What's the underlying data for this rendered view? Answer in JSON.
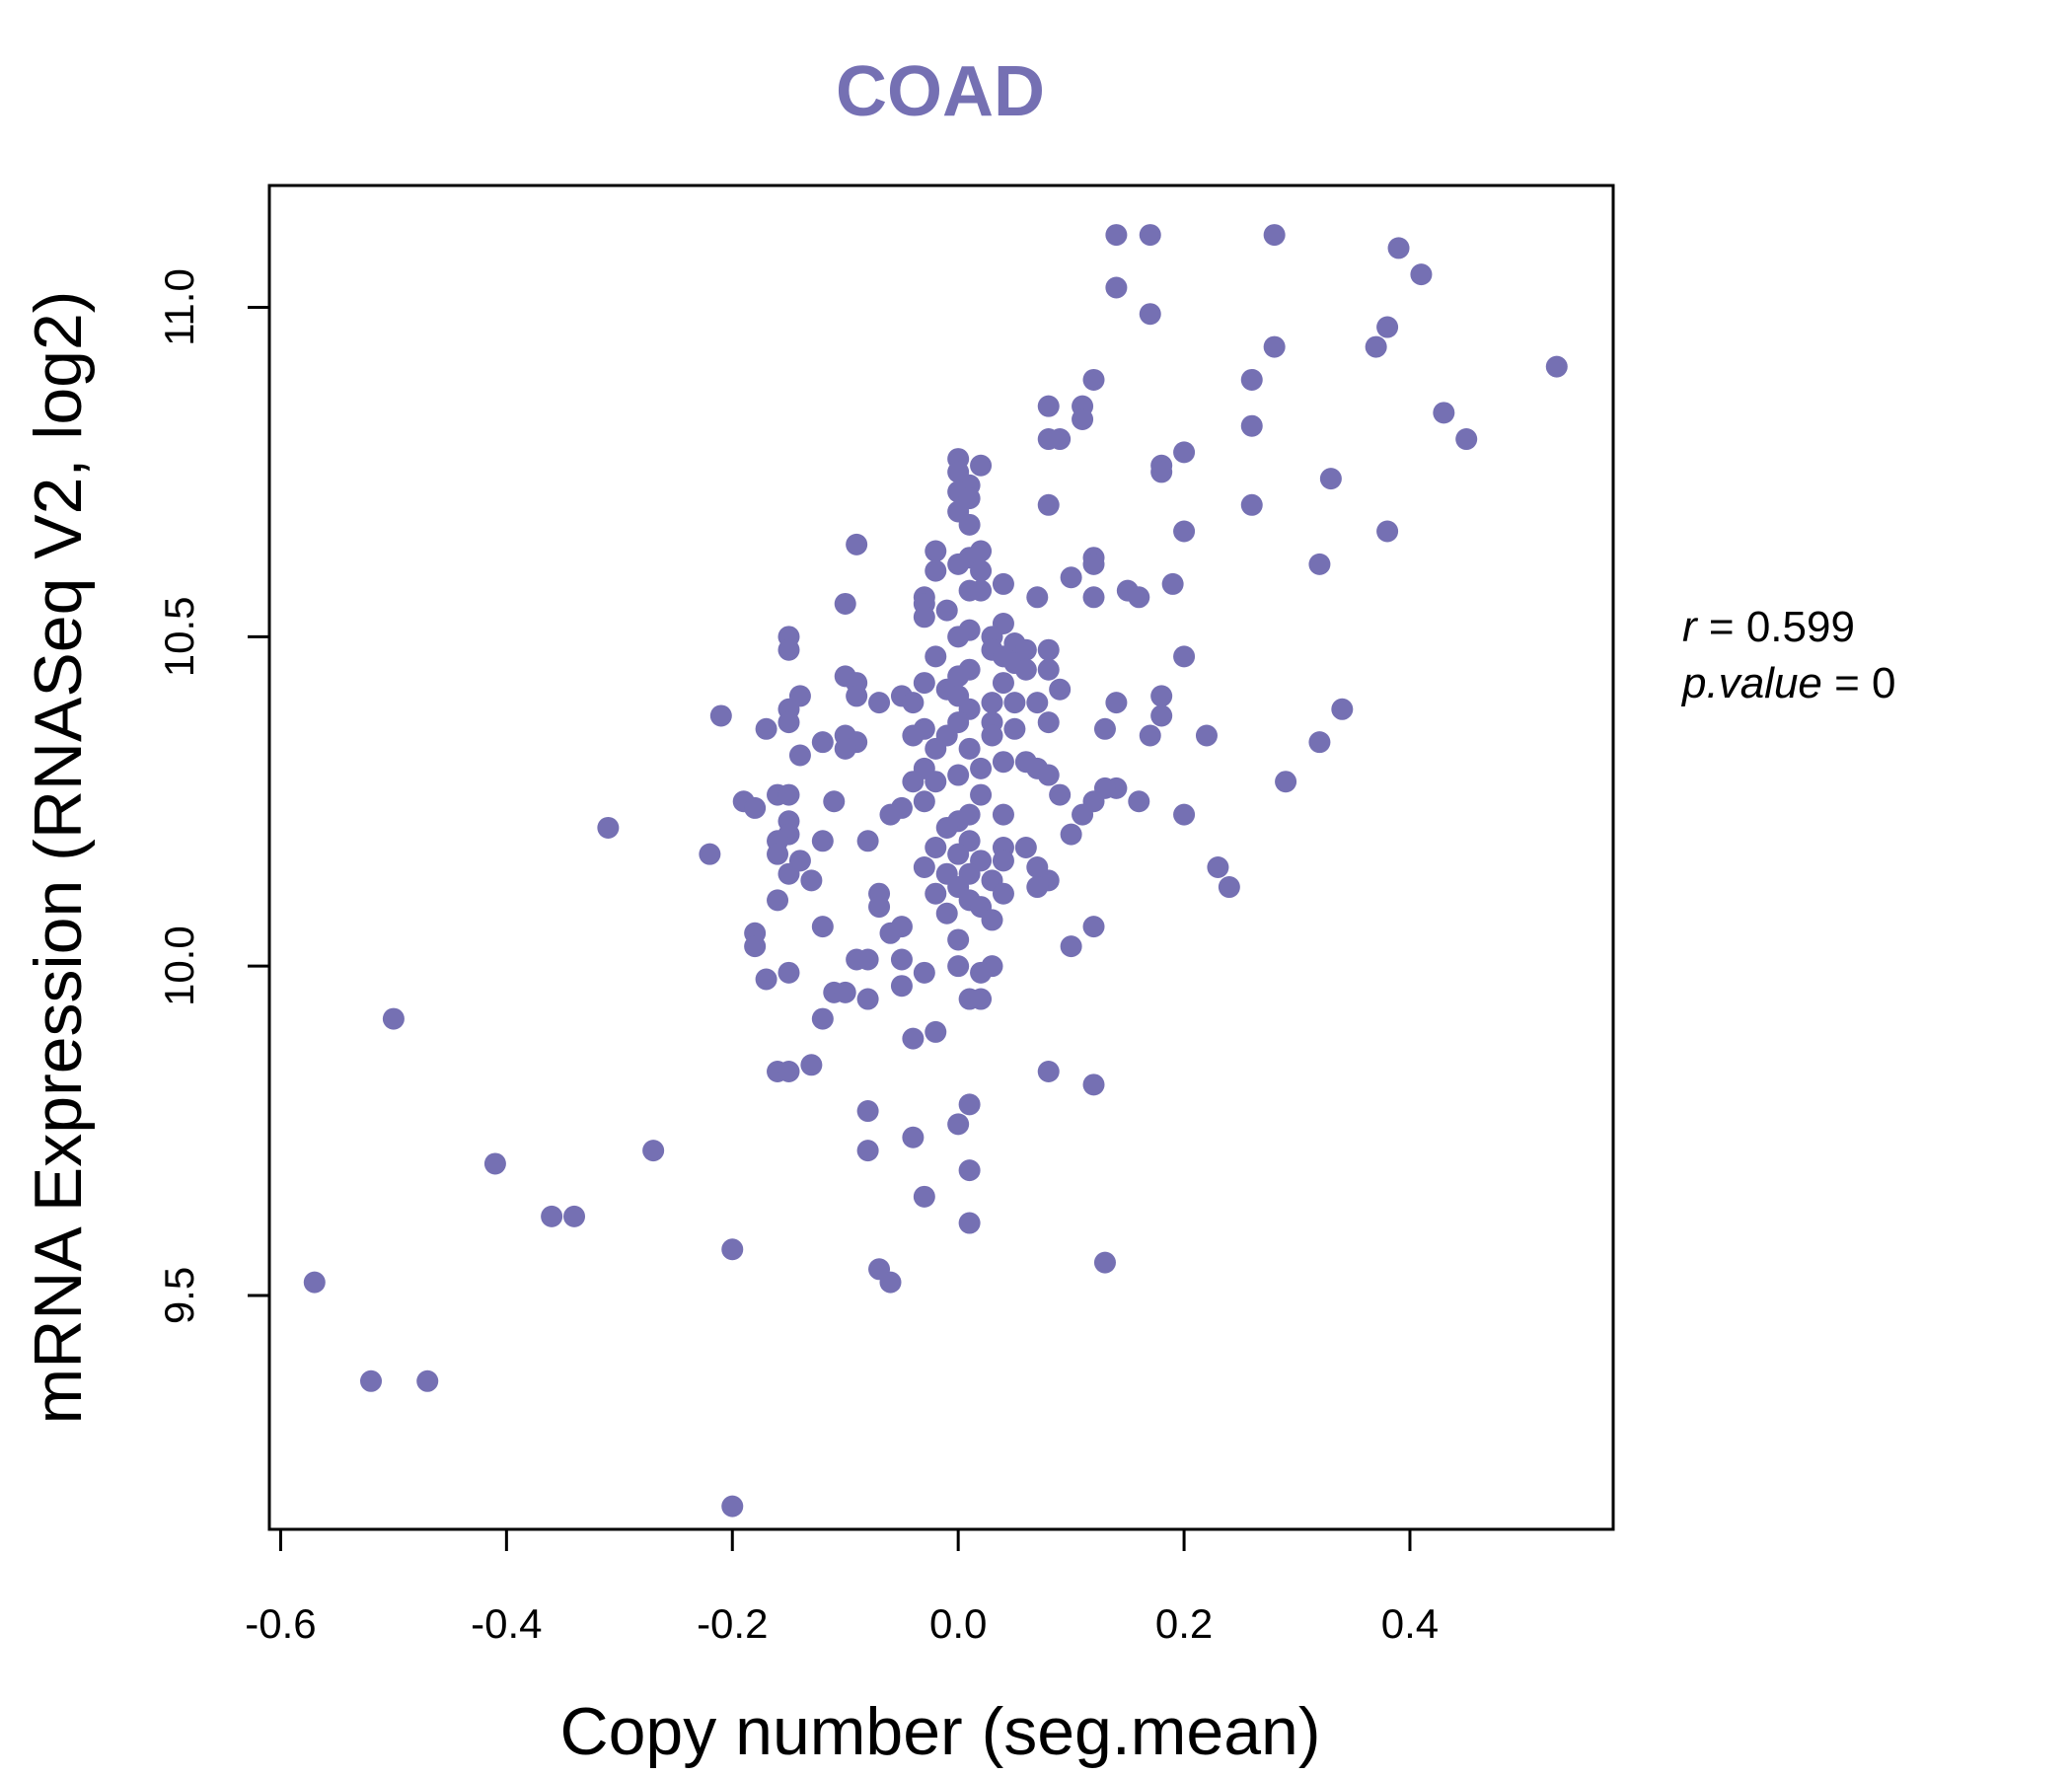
{
  "chart_data": {
    "type": "scatter",
    "title": "COAD",
    "xlabel": "Copy number (seg.mean)",
    "ylabel": "mRNA Expression (RNASeq V2, log2)",
    "xlim": [
      -0.61,
      0.58
    ],
    "ylim": [
      9.145,
      11.185
    ],
    "xticks": [
      -0.6,
      -0.4,
      -0.2,
      0.0,
      0.2,
      0.4
    ],
    "xtick_labels": [
      "-0.6",
      "-0.4",
      "-0.2",
      "0.0",
      "0.2",
      "0.4"
    ],
    "yticks": [
      9.5,
      10.0,
      10.5,
      11.0
    ],
    "ytick_labels": [
      "9.5",
      "10.0",
      "10.5",
      "11.0"
    ],
    "grid": false,
    "colors": {
      "points": "#7570b3",
      "title": "#7570b3",
      "axis": "#000000"
    },
    "annotations": {
      "r_symbol": "r",
      "r_value": "0.599",
      "p_symbol": "p.value",
      "p_value": "0"
    },
    "points": [
      [
        0.14,
        11.11
      ],
      [
        0.17,
        11.11
      ],
      [
        0.28,
        11.11
      ],
      [
        0.39,
        11.09
      ],
      [
        0.41,
        11.05
      ],
      [
        0.14,
        11.03
      ],
      [
        0.17,
        10.99
      ],
      [
        0.38,
        10.97
      ],
      [
        0.37,
        10.94
      ],
      [
        0.28,
        10.94
      ],
      [
        0.53,
        10.91
      ],
      [
        0.26,
        10.89
      ],
      [
        0.12,
        10.89
      ],
      [
        0.08,
        10.85
      ],
      [
        0.11,
        10.85
      ],
      [
        0.43,
        10.84
      ],
      [
        0.11,
        10.83
      ],
      [
        0.26,
        10.82
      ],
      [
        0.09,
        10.8
      ],
      [
        0.08,
        10.8
      ],
      [
        0.45,
        10.8
      ],
      [
        0.2,
        10.78
      ],
      [
        0.0,
        10.77
      ],
      [
        0.02,
        10.76
      ],
      [
        0.18,
        10.76
      ],
      [
        0.0,
        10.75
      ],
      [
        0.18,
        10.75
      ],
      [
        0.33,
        10.74
      ],
      [
        0.01,
        10.73
      ],
      [
        0.0,
        10.72
      ],
      [
        0.01,
        10.71
      ],
      [
        0.08,
        10.7
      ],
      [
        0.26,
        10.7
      ],
      [
        0.0,
        10.69
      ],
      [
        0.01,
        10.67
      ],
      [
        0.2,
        10.66
      ],
      [
        0.38,
        10.66
      ],
      [
        -0.09,
        10.64
      ],
      [
        -0.02,
        10.63
      ],
      [
        0.02,
        10.63
      ],
      [
        0.12,
        10.62
      ],
      [
        0.01,
        10.62
      ],
      [
        0.0,
        10.61
      ],
      [
        0.32,
        10.61
      ],
      [
        0.12,
        10.61
      ],
      [
        -0.02,
        10.6
      ],
      [
        0.02,
        10.6
      ],
      [
        0.1,
        10.59
      ],
      [
        0.04,
        10.58
      ],
      [
        0.19,
        10.58
      ],
      [
        0.01,
        10.57
      ],
      [
        0.02,
        10.57
      ],
      [
        0.15,
        10.57
      ],
      [
        0.16,
        10.56
      ],
      [
        0.12,
        10.56
      ],
      [
        -0.03,
        10.56
      ],
      [
        0.07,
        10.56
      ],
      [
        -0.1,
        10.55
      ],
      [
        -0.03,
        10.55
      ],
      [
        -0.01,
        10.54
      ],
      [
        -0.03,
        10.53
      ],
      [
        0.04,
        10.52
      ],
      [
        0.01,
        10.51
      ],
      [
        -0.0,
        10.5
      ],
      [
        0.03,
        10.5
      ],
      [
        -0.15,
        10.5
      ],
      [
        0.05,
        10.49
      ],
      [
        -0.15,
        10.48
      ],
      [
        0.08,
        10.48
      ],
      [
        0.03,
        10.48
      ],
      [
        0.06,
        10.48
      ],
      [
        0.2,
        10.47
      ],
      [
        -0.02,
        10.47
      ],
      [
        0.04,
        10.47
      ],
      [
        0.05,
        10.46
      ],
      [
        0.06,
        10.45
      ],
      [
        0.08,
        10.45
      ],
      [
        0.01,
        10.45
      ],
      [
        0.0,
        10.44
      ],
      [
        -0.1,
        10.44
      ],
      [
        -0.09,
        10.43
      ],
      [
        -0.03,
        10.43
      ],
      [
        0.04,
        10.43
      ],
      [
        0.09,
        10.42
      ],
      [
        -0.01,
        10.42
      ],
      [
        -0.09,
        10.41
      ],
      [
        0.0,
        10.41
      ],
      [
        0.18,
        10.41
      ],
      [
        -0.14,
        10.41
      ],
      [
        -0.05,
        10.41
      ],
      [
        0.05,
        10.4
      ],
      [
        0.07,
        10.4
      ],
      [
        0.03,
        10.4
      ],
      [
        0.14,
        10.4
      ],
      [
        -0.04,
        10.4
      ],
      [
        -0.07,
        10.4
      ],
      [
        0.01,
        10.39
      ],
      [
        -0.15,
        10.39
      ],
      [
        0.34,
        10.39
      ],
      [
        0.18,
        10.38
      ],
      [
        -0.21,
        10.38
      ],
      [
        0.0,
        10.37
      ],
      [
        -0.15,
        10.37
      ],
      [
        0.08,
        10.37
      ],
      [
        0.03,
        10.37
      ],
      [
        -0.03,
        10.36
      ],
      [
        -0.17,
        10.36
      ],
      [
        0.05,
        10.36
      ],
      [
        0.13,
        10.36
      ],
      [
        -0.01,
        10.35
      ],
      [
        -0.04,
        10.35
      ],
      [
        0.22,
        10.35
      ],
      [
        0.17,
        10.35
      ],
      [
        -0.1,
        10.35
      ],
      [
        0.03,
        10.35
      ],
      [
        -0.12,
        10.34
      ],
      [
        0.32,
        10.34
      ],
      [
        -0.09,
        10.34
      ],
      [
        -0.02,
        10.33
      ],
      [
        0.01,
        10.33
      ],
      [
        -0.1,
        10.33
      ],
      [
        -0.14,
        10.32
      ],
      [
        0.04,
        10.31
      ],
      [
        0.06,
        10.31
      ],
      [
        0.07,
        10.3
      ],
      [
        -0.03,
        10.3
      ],
      [
        0.02,
        10.3
      ],
      [
        0.08,
        10.29
      ],
      [
        0.0,
        10.29
      ],
      [
        -0.04,
        10.28
      ],
      [
        0.29,
        10.28
      ],
      [
        -0.02,
        10.28
      ],
      [
        0.14,
        10.27
      ],
      [
        0.13,
        10.27
      ],
      [
        0.09,
        10.26
      ],
      [
        -0.16,
        10.26
      ],
      [
        -0.15,
        10.26
      ],
      [
        0.02,
        10.26
      ],
      [
        -0.03,
        10.25
      ],
      [
        -0.11,
        10.25
      ],
      [
        0.12,
        10.25
      ],
      [
        0.16,
        10.25
      ],
      [
        -0.19,
        10.25
      ],
      [
        -0.18,
        10.24
      ],
      [
        -0.05,
        10.24
      ],
      [
        0.04,
        10.23
      ],
      [
        0.01,
        10.23
      ],
      [
        0.11,
        10.23
      ],
      [
        -0.06,
        10.23
      ],
      [
        0.2,
        10.23
      ],
      [
        0.0,
        10.22
      ],
      [
        -0.15,
        10.22
      ],
      [
        -0.31,
        10.21
      ],
      [
        -0.01,
        10.21
      ],
      [
        0.1,
        10.2
      ],
      [
        -0.15,
        10.2
      ],
      [
        -0.16,
        10.19
      ],
      [
        0.01,
        10.19
      ],
      [
        -0.12,
        10.19
      ],
      [
        -0.08,
        10.19
      ],
      [
        0.06,
        10.18
      ],
      [
        -0.02,
        10.18
      ],
      [
        0.04,
        10.18
      ],
      [
        -0.16,
        10.17
      ],
      [
        -0.22,
        10.17
      ],
      [
        0.0,
        10.17
      ],
      [
        -0.14,
        10.16
      ],
      [
        0.02,
        10.16
      ],
      [
        0.04,
        10.16
      ],
      [
        -0.03,
        10.15
      ],
      [
        0.23,
        10.15
      ],
      [
        0.07,
        10.15
      ],
      [
        -0.01,
        10.14
      ],
      [
        0.01,
        10.14
      ],
      [
        -0.15,
        10.14
      ],
      [
        0.03,
        10.13
      ],
      [
        0.08,
        10.13
      ],
      [
        0.24,
        10.12
      ],
      [
        -0.13,
        10.13
      ],
      [
        0.0,
        10.12
      ],
      [
        0.07,
        10.12
      ],
      [
        -0.02,
        10.11
      ],
      [
        0.04,
        10.11
      ],
      [
        -0.07,
        10.11
      ],
      [
        0.01,
        10.1
      ],
      [
        -0.16,
        10.1
      ],
      [
        0.02,
        10.09
      ],
      [
        -0.07,
        10.09
      ],
      [
        -0.01,
        10.08
      ],
      [
        0.03,
        10.07
      ],
      [
        0.12,
        10.06
      ],
      [
        -0.12,
        10.06
      ],
      [
        -0.05,
        10.06
      ],
      [
        -0.06,
        10.05
      ],
      [
        -0.18,
        10.05
      ],
      [
        0.0,
        10.04
      ],
      [
        -0.18,
        10.03
      ],
      [
        0.1,
        10.03
      ],
      [
        -0.08,
        10.01
      ],
      [
        -0.09,
        10.01
      ],
      [
        -0.05,
        10.01
      ],
      [
        0.0,
        10.0
      ],
      [
        0.03,
        10.0
      ],
      [
        0.02,
        9.99
      ],
      [
        -0.03,
        9.99
      ],
      [
        -0.15,
        9.99
      ],
      [
        -0.17,
        9.98
      ],
      [
        -0.05,
        9.97
      ],
      [
        -0.11,
        9.96
      ],
      [
        -0.1,
        9.96
      ],
      [
        0.01,
        9.95
      ],
      [
        0.02,
        9.95
      ],
      [
        -0.08,
        9.95
      ],
      [
        -0.12,
        9.92
      ],
      [
        -0.5,
        9.92
      ],
      [
        -0.02,
        9.9
      ],
      [
        -0.04,
        9.89
      ],
      [
        -0.13,
        9.85
      ],
      [
        -0.16,
        9.84
      ],
      [
        0.08,
        9.84
      ],
      [
        -0.15,
        9.84
      ],
      [
        0.12,
        9.82
      ],
      [
        0.01,
        9.79
      ],
      [
        -0.08,
        9.78
      ],
      [
        0.0,
        9.76
      ],
      [
        -0.04,
        9.74
      ],
      [
        -0.08,
        9.72
      ],
      [
        -0.27,
        9.72
      ],
      [
        -0.41,
        9.7
      ],
      [
        0.01,
        9.69
      ],
      [
        -0.03,
        9.65
      ],
      [
        -0.34,
        9.62
      ],
      [
        -0.36,
        9.62
      ],
      [
        0.01,
        9.61
      ],
      [
        -0.2,
        9.57
      ],
      [
        0.13,
        9.55
      ],
      [
        -0.07,
        9.54
      ],
      [
        -0.06,
        9.52
      ],
      [
        -0.57,
        9.52
      ],
      [
        -0.52,
        9.37
      ],
      [
        -0.47,
        9.37
      ],
      [
        -0.2,
        9.18
      ]
    ]
  }
}
